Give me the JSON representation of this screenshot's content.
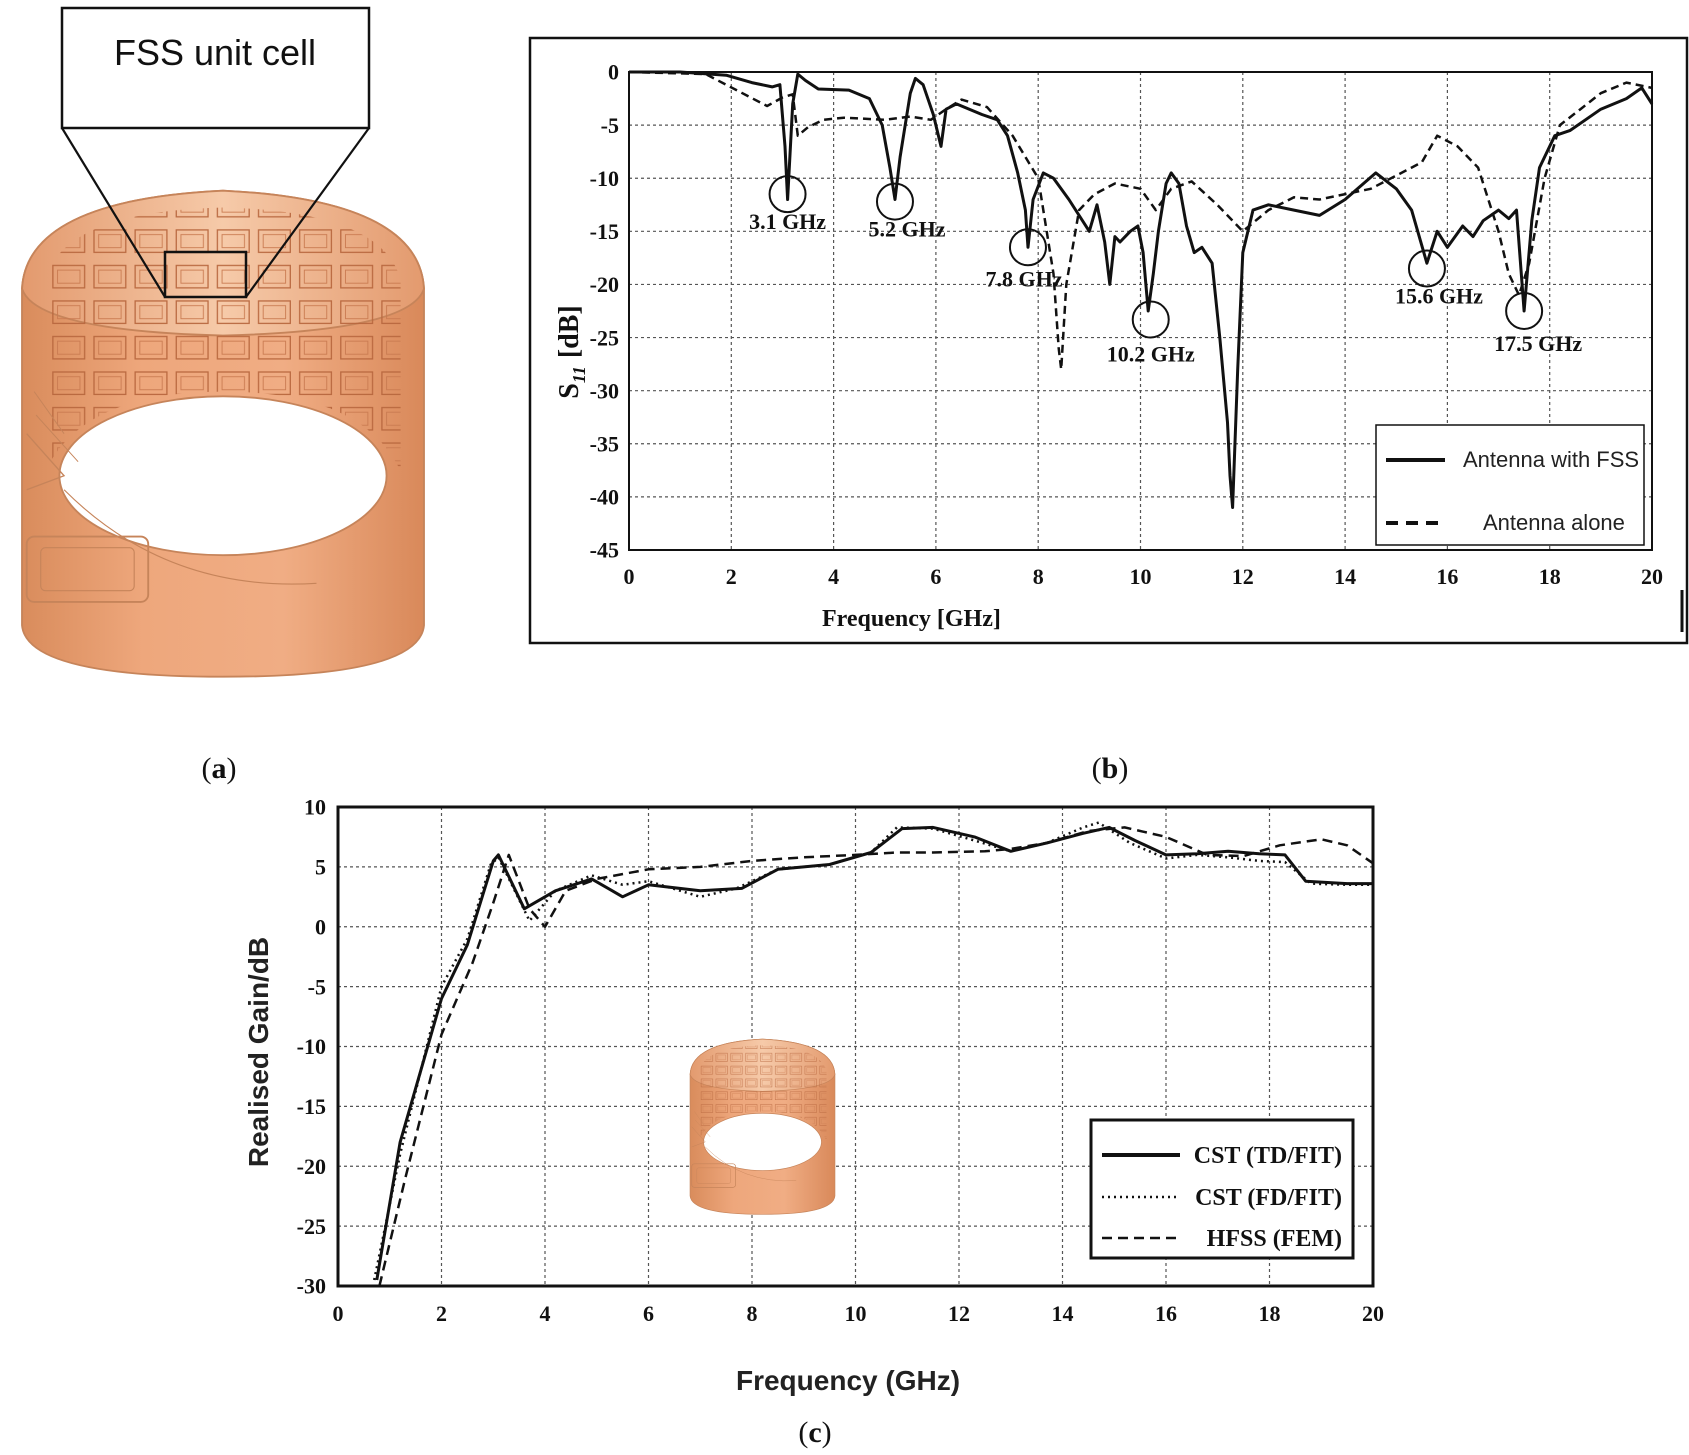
{
  "colors": {
    "copper": "#e8a47a",
    "copper_dark": "#b8673e",
    "copper_light": "#f3c7a6",
    "ink": "#111111",
    "grid": "#555555"
  },
  "panel_a": {
    "callout": "FSS unit cell",
    "caption_letter": "a"
  },
  "panel_b": {
    "caption_letter": "b",
    "chart_data": {
      "type": "line",
      "xlabel": "Frequency [GHz]",
      "ylabel_main": "S",
      "ylabel_sub": "11",
      "ylabel_unit": "[dB]",
      "xlim": [
        0,
        20
      ],
      "ylim": [
        -45,
        0
      ],
      "xticks": [
        0,
        2,
        4,
        6,
        8,
        10,
        12,
        14,
        16,
        18,
        20
      ],
      "yticks": [
        0,
        -5,
        -10,
        -15,
        -20,
        -25,
        -30,
        -35,
        -40,
        -45
      ],
      "tick_labels_x": [
        "0",
        "2",
        "4",
        "6",
        "8",
        "10",
        "12",
        "14",
        "16",
        "18",
        "20"
      ],
      "tick_labels_y": [
        "0",
        "-5",
        "-10",
        "-15",
        "-20",
        "-25",
        "-30",
        "-35",
        "-40",
        "-45"
      ],
      "grid": true,
      "legend": [
        "Antenna with FSS",
        "Antenna alone"
      ],
      "series": [
        {
          "name": "Antenna with FSS",
          "style": "solid",
          "x": [
            0,
            1,
            1.9,
            2.4,
            2.8,
            2.95,
            3.05,
            3.1,
            3.2,
            3.3,
            3.45,
            3.7,
            4.3,
            4.7,
            4.95,
            5.1,
            5.2,
            5.3,
            5.5,
            5.6,
            5.75,
            5.95,
            6.1,
            6.2,
            6.4,
            6.9,
            7.2,
            7.4,
            7.6,
            7.75,
            7.8,
            7.9,
            8.1,
            8.3,
            8.6,
            9.0,
            9.15,
            9.3,
            9.4,
            9.5,
            9.6,
            9.8,
            9.95,
            10.05,
            10.15,
            10.25,
            10.35,
            10.5,
            10.6,
            10.75,
            10.9,
            11.05,
            11.2,
            11.4,
            11.55,
            11.7,
            11.75,
            11.8,
            11.9,
            12.0,
            12.2,
            12.5,
            13.0,
            13.5,
            14.0,
            14.6,
            15.0,
            15.3,
            15.6,
            15.8,
            16.0,
            16.3,
            16.5,
            16.7,
            17.0,
            17.2,
            17.35,
            17.5,
            17.65,
            17.8,
            18.1,
            18.4,
            18.7,
            19.0,
            19.5,
            19.8,
            20.0
          ],
          "y": [
            0,
            0,
            -0.3,
            -1.0,
            -1.4,
            -1.2,
            -7,
            -12,
            -3,
            -0.2,
            -0.8,
            -1.6,
            -1.7,
            -2.5,
            -5,
            -9,
            -12,
            -8,
            -2,
            -0.6,
            -1.2,
            -4,
            -7,
            -3.5,
            -3,
            -4,
            -4.5,
            -6,
            -9.5,
            -13,
            -16.5,
            -12,
            -9.5,
            -10,
            -12,
            -15,
            -12.5,
            -16,
            -20,
            -15.5,
            -16,
            -15,
            -14.5,
            -17,
            -22.5,
            -19,
            -15,
            -10.5,
            -9.5,
            -10.5,
            -14.5,
            -17,
            -16.5,
            -18,
            -25,
            -33,
            -38,
            -41,
            -28,
            -17,
            -13,
            -12.5,
            -13,
            -13.5,
            -12,
            -9.5,
            -11,
            -13,
            -18,
            -15,
            -16.5,
            -14.5,
            -15.5,
            -14,
            -13,
            -13.8,
            -13,
            -22.5,
            -14,
            -9,
            -6,
            -5.5,
            -4.5,
            -3.5,
            -2.5,
            -1.5,
            -3
          ]
        },
        {
          "name": "Antenna alone",
          "style": "dashed",
          "x": [
            0,
            1.5,
            2.3,
            2.7,
            3.0,
            3.2,
            3.3,
            3.5,
            3.8,
            4.2,
            5.0,
            5.5,
            5.9,
            6.2,
            6.5,
            7.0,
            7.5,
            8.0,
            8.3,
            8.4,
            8.45,
            8.55,
            8.8,
            9.1,
            9.5,
            10.0,
            10.3,
            10.6,
            11.0,
            11.5,
            12.0,
            12.5,
            13.0,
            13.5,
            14.5,
            15.5,
            15.8,
            16.2,
            16.6,
            17.0,
            17.2,
            17.4,
            17.6,
            17.9,
            18.2,
            18.6,
            19.0,
            19.5,
            20.0
          ],
          "y": [
            0,
            -0.2,
            -2.2,
            -3.2,
            -2.4,
            -2.1,
            -6,
            -5.2,
            -4.5,
            -4.3,
            -4.5,
            -4.2,
            -4.5,
            -3.5,
            -2.6,
            -3.3,
            -6,
            -10,
            -19,
            -26,
            -28,
            -20,
            -13,
            -11.5,
            -10.5,
            -11,
            -13,
            -11,
            -10.3,
            -12.5,
            -15,
            -13,
            -11.8,
            -12,
            -11,
            -8.5,
            -6,
            -7,
            -9,
            -15,
            -19,
            -21,
            -18,
            -10,
            -5,
            -3.5,
            -2,
            -1,
            -1.5
          ]
        }
      ],
      "annotations": [
        {
          "label": "3.1 GHz",
          "x": 3.1,
          "y": -11.5
        },
        {
          "label": "5.2 GHz",
          "x": 5.2,
          "y": -12.2
        },
        {
          "label": "7.8 GHz",
          "x": 7.8,
          "y": -16.5
        },
        {
          "label": "10.2 GHz",
          "x": 10.2,
          "y": -23.3
        },
        {
          "label": "15.6 GHz",
          "x": 15.6,
          "y": -18.5
        },
        {
          "label": "17.5 GHz",
          "x": 17.5,
          "y": -22.5
        }
      ]
    }
  },
  "panel_c": {
    "caption_letter": "c",
    "chart_data": {
      "type": "line",
      "xlabel": "Frequency (GHz)",
      "ylabel": "Realised Gain/dB",
      "xlim": [
        0,
        20
      ],
      "ylim": [
        -30,
        10
      ],
      "xticks": [
        0,
        2,
        4,
        6,
        8,
        10,
        12,
        14,
        16,
        18,
        20
      ],
      "yticks": [
        10,
        5,
        0,
        -5,
        -10,
        -15,
        -20,
        -25,
        -30
      ],
      "tick_labels_x": [
        "0",
        "2",
        "4",
        "6",
        "8",
        "10",
        "12",
        "14",
        "16",
        "18",
        "20"
      ],
      "tick_labels_y": [
        "10",
        "5",
        "0",
        "-5",
        "-10",
        "-15",
        "-20",
        "-25",
        "-30"
      ],
      "grid": true,
      "legend": [
        "CST (TD/FIT)",
        "CST (FD/FIT)",
        "HFSS (FEM)"
      ],
      "series": [
        {
          "name": "CST (TD/FIT)",
          "style": "solid",
          "x": [
            0.75,
            1.2,
            2.0,
            2.5,
            3.0,
            3.1,
            3.6,
            4.2,
            4.9,
            5.3,
            5.5,
            6.0,
            7.0,
            7.8,
            8.5,
            9.5,
            10.3,
            10.9,
            11.5,
            12.3,
            13.0,
            13.7,
            14.4,
            14.9,
            15.4,
            16.0,
            16.6,
            17.2,
            17.8,
            18.3,
            18.7,
            19.5,
            20.0
          ],
          "y": [
            -29.5,
            -18,
            -6,
            -1.5,
            5.5,
            6.0,
            1.5,
            3.0,
            4.0,
            3.0,
            2.5,
            3.5,
            3.0,
            3.2,
            4.8,
            5.2,
            6.2,
            8.2,
            8.3,
            7.5,
            6.3,
            7.0,
            7.8,
            8.3,
            7.2,
            6.0,
            6.1,
            6.3,
            6.1,
            6.0,
            3.8,
            3.6,
            3.6
          ]
        },
        {
          "name": "CST (FD/FIT)",
          "style": "dotted",
          "x": [
            0.7,
            1.2,
            2.0,
            2.5,
            2.95,
            3.1,
            3.7,
            4.2,
            4.9,
            5.5,
            6.0,
            7.0,
            7.7,
            8.5,
            9.5,
            10.3,
            10.8,
            11.5,
            12.3,
            13.0,
            13.7,
            14.4,
            14.7,
            15.3,
            16.0,
            16.6,
            17.2,
            17.8,
            18.3,
            18.8,
            19.5,
            20.0
          ],
          "y": [
            -29.5,
            -19,
            -5,
            -1,
            5.2,
            5.8,
            0.5,
            3.0,
            4.3,
            3.5,
            3.8,
            2.5,
            3.2,
            4.8,
            5.2,
            6.2,
            8.3,
            8.2,
            7.2,
            6.3,
            7.0,
            8.3,
            8.7,
            7.0,
            5.7,
            6.0,
            5.8,
            5.5,
            5.4,
            3.6,
            3.5,
            3.5
          ]
        },
        {
          "name": "HFSS (FEM)",
          "style": "dashed",
          "x": [
            0.8,
            1.3,
            2.0,
            2.6,
            3.0,
            3.3,
            3.7,
            4.0,
            4.4,
            5.0,
            6.0,
            7.0,
            8.0,
            9.0,
            10.0,
            10.8,
            11.5,
            12.5,
            13.0,
            13.7,
            14.5,
            15.2,
            16.0,
            16.8,
            17.5,
            18.2,
            19.0,
            19.5,
            20.0
          ],
          "y": [
            -30,
            -21,
            -9,
            -3,
            2,
            6.0,
            1.5,
            0,
            3.0,
            4.0,
            4.8,
            5.0,
            5.5,
            5.8,
            6.0,
            6.2,
            6.2,
            6.3,
            6.5,
            7.0,
            8.0,
            8.3,
            7.5,
            6.0,
            5.9,
            6.8,
            7.3,
            6.8,
            5.3
          ]
        }
      ]
    }
  }
}
